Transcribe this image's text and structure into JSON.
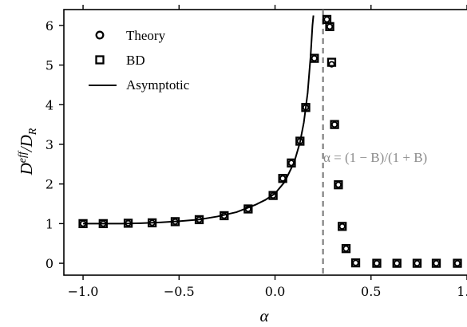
{
  "chart_data": {
    "type": "scatter",
    "xlabel": "α",
    "ylabel_main": "D",
    "ylabel_sup": "eff",
    "ylabel_rest": "/D",
    "ylabel_sub": "R",
    "xlim": [
      -1.1,
      1.0
    ],
    "ylim": [
      -0.3,
      6.4
    ],
    "xticks": [
      -1.0,
      -0.5,
      0.0,
      0.5,
      1.0
    ],
    "xtick_labels": [
      "−1.0",
      "−0.5",
      "0.0",
      "0.5",
      "1.0"
    ],
    "yticks": [
      0,
      1,
      2,
      3,
      4,
      5,
      6
    ],
    "ytick_labels": [
      "0",
      "1",
      "2",
      "3",
      "4",
      "5",
      "6"
    ],
    "grid": false,
    "legend_position": "top-left",
    "series": [
      {
        "name": "Theory",
        "marker": "circle",
        "points": [
          [
            -1.0,
            1.0
          ],
          [
            -0.895,
            1.0
          ],
          [
            -0.765,
            1.01
          ],
          [
            -0.64,
            1.02
          ],
          [
            -0.52,
            1.05
          ],
          [
            -0.395,
            1.1
          ],
          [
            -0.265,
            1.2
          ],
          [
            -0.14,
            1.37
          ],
          [
            -0.01,
            1.71
          ],
          [
            0.04,
            2.14
          ],
          [
            0.085,
            2.53
          ],
          [
            0.13,
            3.08
          ],
          [
            0.16,
            3.93
          ],
          [
            0.205,
            5.17
          ],
          [
            0.27,
            6.15
          ],
          [
            0.285,
            5.97
          ],
          [
            0.295,
            5.02
          ],
          [
            0.31,
            3.5
          ],
          [
            0.33,
            1.98
          ],
          [
            0.35,
            0.93
          ],
          [
            0.37,
            0.37
          ],
          [
            0.42,
            0.01
          ],
          [
            0.53,
            0.0
          ],
          [
            0.635,
            0.0
          ],
          [
            0.74,
            0.0
          ],
          [
            0.84,
            0.0
          ],
          [
            0.95,
            0.0
          ]
        ]
      },
      {
        "name": "BD",
        "marker": "square",
        "points": [
          [
            -1.0,
            1.0
          ],
          [
            -0.895,
            1.0
          ],
          [
            -0.765,
            1.01
          ],
          [
            -0.64,
            1.02
          ],
          [
            -0.52,
            1.05
          ],
          [
            -0.395,
            1.1
          ],
          [
            -0.265,
            1.2
          ],
          [
            -0.14,
            1.37
          ],
          [
            -0.01,
            1.71
          ],
          [
            0.04,
            2.14
          ],
          [
            0.085,
            2.53
          ],
          [
            0.13,
            3.08
          ],
          [
            0.16,
            3.93
          ],
          [
            0.205,
            5.17
          ],
          [
            0.27,
            6.15
          ],
          [
            0.285,
            5.97
          ],
          [
            0.295,
            5.07
          ],
          [
            0.31,
            3.5
          ],
          [
            0.33,
            1.98
          ],
          [
            0.35,
            0.93
          ],
          [
            0.37,
            0.37
          ],
          [
            0.42,
            0.01
          ],
          [
            0.53,
            0.0
          ],
          [
            0.635,
            0.0
          ],
          [
            0.74,
            0.0
          ],
          [
            0.84,
            0.0
          ],
          [
            0.95,
            0.0
          ]
        ]
      },
      {
        "name": "Asymptotic",
        "line": "solid",
        "points": [
          [
            -1.0,
            1.0
          ],
          [
            -0.9,
            1.0
          ],
          [
            -0.8,
            1.0
          ],
          [
            -0.7,
            1.01
          ],
          [
            -0.6,
            1.03
          ],
          [
            -0.5,
            1.06
          ],
          [
            -0.4,
            1.1
          ],
          [
            -0.3,
            1.18
          ],
          [
            -0.2,
            1.29
          ],
          [
            -0.1,
            1.48
          ],
          [
            -0.05,
            1.6
          ],
          [
            0.0,
            1.76
          ],
          [
            0.05,
            2.05
          ],
          [
            0.1,
            2.55
          ],
          [
            0.13,
            3.05
          ],
          [
            0.15,
            3.55
          ],
          [
            0.17,
            4.3
          ],
          [
            0.185,
            5.2
          ],
          [
            0.195,
            6.0
          ],
          [
            0.2,
            6.25
          ]
        ]
      }
    ],
    "vline": {
      "x": 0.25,
      "style": "dashed",
      "color": "#808080"
    },
    "annotation": {
      "text": "α = (1 − B)/(1 + B)",
      "color": "#8c8c8c"
    }
  }
}
